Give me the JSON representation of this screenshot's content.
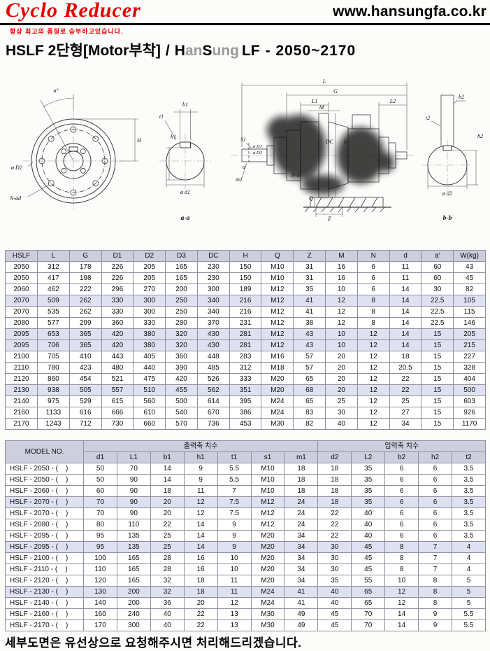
{
  "header": {
    "logo": "Cyclo Reducer",
    "tagline": "항상 최고의 품질로 승부하고있습니다.",
    "website": "www.hansungfa.co.kr"
  },
  "title": {
    "model": "HSLF 2단형[Motor부착]",
    "separator": "/",
    "brand": [
      {
        "text": "H"
      },
      {
        "text": "an"
      },
      {
        "text": "S"
      },
      {
        "text": "ung"
      }
    ],
    "series": "LF",
    "range": "- 2050~2170"
  },
  "drawings": {
    "front": {
      "angle": "a°",
      "h": "H",
      "d2": "ø D2",
      "n_od": "N-ød"
    },
    "aa": {
      "b1": "b1",
      "t1": "t1",
      "h1": "h1",
      "d1": "ø d1",
      "caption": "a-a"
    },
    "side": {
      "l": "L",
      "g": "G",
      "l1": "L1",
      "m": "M",
      "l2": "L2",
      "s1": "S1",
      "d1": "ø D1",
      "d3": "ø D3",
      "dc": "DC",
      "b": "b",
      "a": "a",
      "m1": "m1",
      "q": "Q",
      "z": "Z",
      "nm": "N-M"
    },
    "bb": {
      "b2": "b2",
      "t2": "t2",
      "h2": "h2",
      "d2": "ø d2",
      "caption": "b-b"
    }
  },
  "table1": {
    "headers": [
      "HSLF",
      "L",
      "G",
      "D1",
      "D2",
      "D3",
      "DC",
      "H",
      "Q",
      "Z",
      "M",
      "N",
      "d",
      "a'",
      "W(kg)"
    ],
    "rows": [
      [
        "2050",
        312,
        178,
        226,
        205,
        165,
        230,
        150,
        "M10",
        31,
        16,
        6,
        11,
        60,
        43
      ],
      [
        "2050",
        417,
        198,
        226,
        205,
        165,
        230,
        150,
        "M10",
        31,
        16,
        6,
        11,
        60,
        45
      ],
      [
        "2060",
        462,
        222,
        296,
        270,
        200,
        300,
        189,
        "M12",
        35,
        10,
        6,
        14,
        30,
        82
      ],
      [
        "2070",
        509,
        262,
        330,
        300,
        250,
        340,
        216,
        "M12",
        41,
        12,
        8,
        14,
        22.5,
        105
      ],
      [
        "2070",
        535,
        262,
        330,
        300,
        250,
        340,
        216,
        "M12",
        41,
        12,
        8,
        14,
        22.5,
        115
      ],
      [
        "2080",
        577,
        299,
        360,
        330,
        280,
        370,
        231,
        "M12",
        38,
        12,
        8,
        14,
        22.5,
        146
      ],
      [
        "2095",
        653,
        365,
        420,
        380,
        320,
        430,
        281,
        "M12",
        43,
        10,
        12,
        14,
        15,
        205
      ],
      [
        "2095",
        706,
        365,
        420,
        380,
        320,
        430,
        281,
        "M12",
        43,
        10,
        12,
        14,
        15,
        215
      ],
      [
        "2100",
        705,
        410,
        443,
        405,
        360,
        448,
        283,
        "M16",
        57,
        20,
        12,
        18,
        15,
        227
      ],
      [
        "2110",
        780,
        423,
        480,
        440,
        390,
        485,
        312,
        "M18",
        57,
        20,
        12,
        20.5,
        15,
        328
      ],
      [
        "2120",
        860,
        454,
        521,
        475,
        420,
        526,
        333,
        "M20",
        65,
        20,
        12,
        22,
        15,
        404
      ],
      [
        "2130",
        938,
        505,
        557,
        510,
        455,
        562,
        351,
        "M20",
        68,
        20,
        12,
        22,
        15,
        500
      ],
      [
        "2140",
        975,
        529,
        615,
        560,
        500,
        614,
        395,
        "M24",
        65,
        25,
        12,
        25,
        15,
        603
      ],
      [
        "2160",
        1133,
        616,
        666,
        610,
        540,
        670,
        386,
        "M24",
        83,
        30,
        12,
        27,
        15,
        926
      ],
      [
        "2170",
        1243,
        712,
        730,
        660,
        570,
        736,
        453,
        "M30",
        82,
        40,
        12,
        34,
        15,
        1170
      ]
    ],
    "highlighted_rows": [
      3,
      6,
      7,
      11
    ]
  },
  "table2": {
    "model_header": "MODEL NO.",
    "group_headers": [
      "출력축 치수",
      "입력축 치수"
    ],
    "sub_headers": [
      "d1",
      "L1",
      "b1",
      "h1",
      "t1",
      "s1",
      "m1",
      "d2",
      "L2",
      "b2",
      "h2",
      "t2"
    ],
    "rows": [
      {
        "model": "HSLF - 2050 - (    )",
        "values": [
          50,
          70,
          14,
          9,
          5.5,
          "M10",
          18,
          18,
          35,
          6,
          6,
          3.5
        ]
      },
      {
        "model": "HSLF - 2050 - (    )",
        "values": [
          50,
          90,
          14,
          9,
          5.5,
          "M10",
          18,
          18,
          35,
          6,
          6,
          3.5
        ]
      },
      {
        "model": "HSLF - 2060 - (    )",
        "values": [
          60,
          90,
          18,
          11,
          7,
          "M10",
          18,
          18,
          35,
          6,
          6,
          3.5
        ]
      },
      {
        "model": "HSLF - 2070 - (    )",
        "values": [
          70,
          90,
          20,
          12,
          7.5,
          "M12",
          24,
          18,
          35,
          6,
          6,
          3.5
        ]
      },
      {
        "model": "HSLF - 2070 - (    )",
        "values": [
          70,
          90,
          20,
          12,
          7.5,
          "M12",
          24,
          22,
          40,
          6,
          6,
          3.5
        ]
      },
      {
        "model": "HSLF - 2080 - (    )",
        "values": [
          80,
          110,
          22,
          14,
          9,
          "M12",
          24,
          22,
          40,
          6,
          6,
          3.5
        ]
      },
      {
        "model": "HSLF - 2095 - (    )",
        "values": [
          95,
          135,
          25,
          14,
          9,
          "M20",
          34,
          22,
          40,
          6,
          6,
          3.5
        ]
      },
      {
        "model": "HSLF - 2095 - (    )",
        "values": [
          95,
          135,
          25,
          14,
          9,
          "M20",
          34,
          30,
          45,
          8,
          7,
          4
        ]
      },
      {
        "model": "HSLF - 2100 - (    )",
        "values": [
          100,
          165,
          28,
          16,
          10,
          "M20",
          34,
          30,
          45,
          8,
          7,
          4
        ]
      },
      {
        "model": "HSLF - 2110 - (    )",
        "values": [
          110,
          165,
          28,
          16,
          10,
          "M20",
          34,
          30,
          45,
          8,
          7,
          4
        ]
      },
      {
        "model": "HSLF - 2120 - (    )",
        "values": [
          120,
          165,
          32,
          18,
          11,
          "M20",
          34,
          35,
          55,
          10,
          8,
          5
        ]
      },
      {
        "model": "HSLF - 2130 - (    )",
        "values": [
          130,
          200,
          32,
          18,
          11,
          "M24",
          41,
          40,
          65,
          12,
          8,
          5
        ]
      },
      {
        "model": "HSLF - 2140 - (    )",
        "values": [
          140,
          200,
          36,
          20,
          12,
          "M24",
          41,
          40,
          65,
          12,
          8,
          5
        ]
      },
      {
        "model": "HSLF - 2160 - (    )",
        "values": [
          160,
          240,
          40,
          22,
          13,
          "M30",
          49,
          45,
          70,
          14,
          9,
          5.5
        ]
      },
      {
        "model": "HSLF - 2170 - (    )",
        "values": [
          170,
          300,
          40,
          22,
          13,
          "M30",
          49,
          45,
          70,
          14,
          9,
          5.5
        ]
      }
    ],
    "highlighted_rows": [
      3,
      7,
      11
    ]
  },
  "footer": {
    "note": "세부도면은 유선상으로 요청해주시면 처리해드리겠습니다."
  },
  "colors": {
    "accent_red": "#e60000",
    "table_header_bg": "#cdcede",
    "row_highlight_bg": "#dee1f1"
  }
}
